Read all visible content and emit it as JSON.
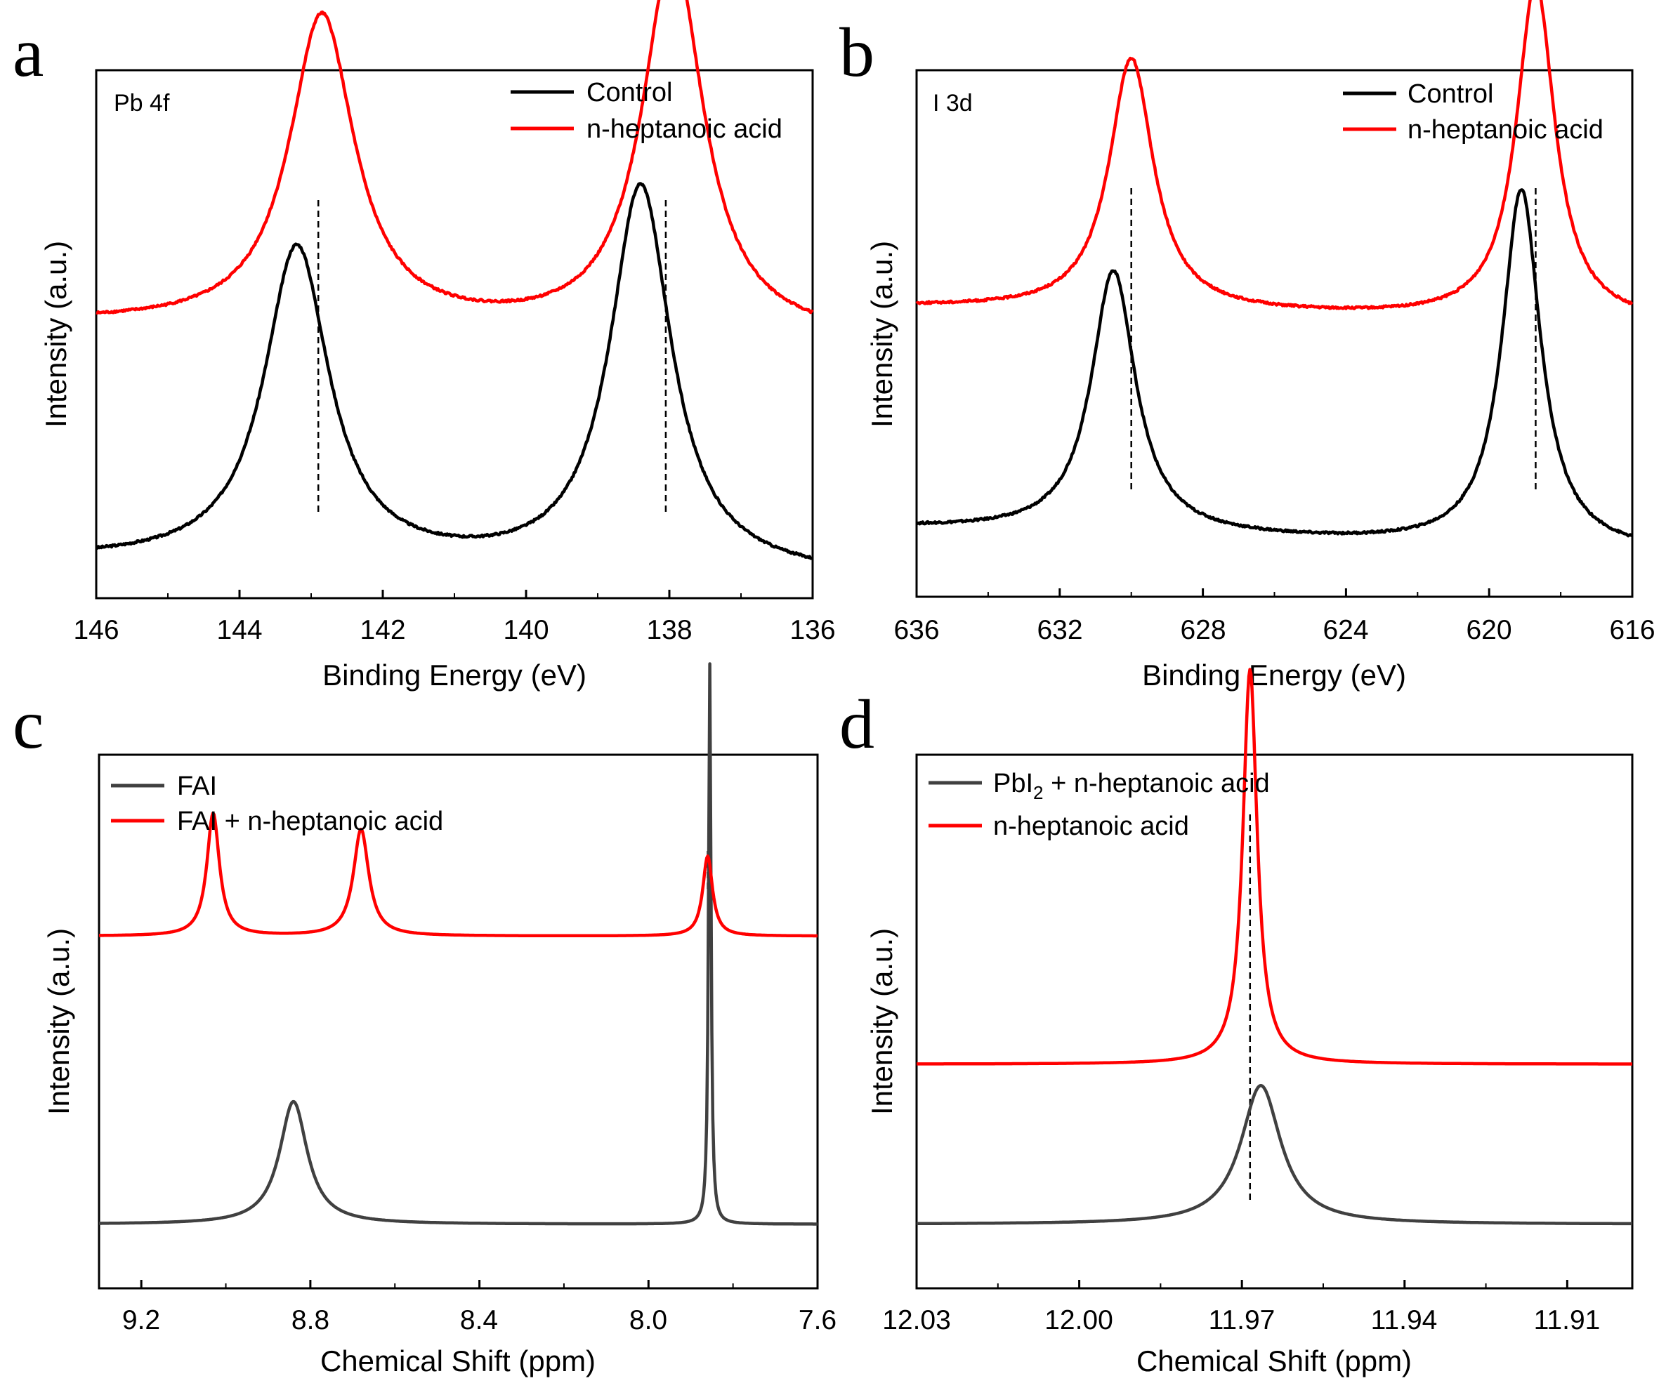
{
  "chart_data": [
    {
      "panel": "a",
      "type": "line",
      "annotation": "Pb 4f",
      "xlabel": "Binding Energy (eV)",
      "ylabel": "Intensity (a.u.)",
      "xlim": [
        146,
        136
      ],
      "x_ticks": [
        "146",
        "144",
        "142",
        "140",
        "138",
        "136"
      ],
      "legend_position": "top-right",
      "reference_lines_x": [
        142.9,
        138.05
      ],
      "series": [
        {
          "name": "Control",
          "color": "#000000",
          "baseline": 0.07,
          "baseline_slope": -0.03,
          "peaks": [
            {
              "x": 143.2,
              "height": 0.6,
              "width": 0.55
            },
            {
              "x": 138.4,
              "height": 0.73,
              "width": 0.52
            }
          ]
        },
        {
          "name": "n-heptanoic acid",
          "color": "#ff0000",
          "baseline": 0.52,
          "baseline_slope": -0.03,
          "peaks": [
            {
              "x": 142.85,
              "height": 0.59,
              "width": 0.55
            },
            {
              "x": 137.95,
              "height": 0.72,
              "width": 0.52
            }
          ]
        }
      ]
    },
    {
      "panel": "b",
      "type": "line",
      "annotation": "I 3d",
      "xlabel": "Binding Energy (eV)",
      "ylabel": "Intensity (a.u.)",
      "xlim": [
        636,
        616
      ],
      "x_ticks": [
        "636",
        "632",
        "628",
        "624",
        "620",
        "616"
      ],
      "legend_position": "top-right",
      "reference_lines_x": [
        630.0,
        618.7
      ],
      "series": [
        {
          "name": "Control",
          "color": "#000000",
          "baseline": 0.13,
          "baseline_slope": -0.045,
          "peaks": [
            {
              "x": 630.5,
              "height": 0.5,
              "width": 0.75
            },
            {
              "x": 619.1,
              "height": 0.68,
              "width": 0.65
            }
          ]
        },
        {
          "name": "n-heptanoic acid",
          "color": "#ff0000",
          "baseline": 0.55,
          "baseline_slope": -0.03,
          "peaks": [
            {
              "x": 630.0,
              "height": 0.48,
              "width": 0.75
            },
            {
              "x": 618.7,
              "height": 0.64,
              "width": 0.65
            }
          ]
        }
      ]
    },
    {
      "panel": "c",
      "type": "line",
      "xlabel": "Chemical Shift (ppm)",
      "ylabel": "Intensity (a.u.)",
      "xlim": [
        9.3,
        7.6
      ],
      "x_ticks": [
        "9.2",
        "8.8",
        "8.4",
        "8.0",
        "7.6"
      ],
      "legend_position": "top-left",
      "reference_lines_x": [
        7.86
      ],
      "series": [
        {
          "name": "FAI",
          "color": "#404040",
          "baseline": 0.12,
          "peaks": [
            {
              "x": 8.84,
              "height": 0.23,
              "width": 0.04
            },
            {
              "x": 7.855,
              "height": 1.05,
              "width": 0.0035
            }
          ]
        },
        {
          "name": "FAI + n-heptanoic acid",
          "color": "#ff0000",
          "baseline": 0.66,
          "peaks": [
            {
              "x": 9.03,
              "height": 0.23,
              "width": 0.018
            },
            {
              "x": 8.68,
              "height": 0.2,
              "width": 0.022
            },
            {
              "x": 7.86,
              "height": 0.15,
              "width": 0.014
            }
          ]
        }
      ]
    },
    {
      "panel": "d",
      "type": "line",
      "xlabel": "Chemical Shift (ppm)",
      "ylabel": "Intensity (a.u.)",
      "xlim": [
        12.03,
        11.898
      ],
      "x_ticks": [
        "12.03",
        "12.00",
        "11.97",
        "11.94",
        "11.91"
      ],
      "legend_position": "top-left",
      "reference_lines_x": [
        11.9685
      ],
      "series": [
        {
          "name": "PbI2 + n-heptanoic acid",
          "label_main": "PbI",
          "label_sub": "2",
          "label_rest": " + n-heptanoic acid",
          "color": "#404040",
          "baseline": 0.12,
          "peaks": [
            {
              "x": 11.9665,
              "height": 0.26,
              "width": 0.0045
            }
          ]
        },
        {
          "name": "n-heptanoic acid",
          "color": "#ff0000",
          "baseline": 0.42,
          "peaks": [
            {
              "x": 11.9685,
              "height": 0.74,
              "width": 0.0016
            }
          ]
        }
      ]
    }
  ],
  "panels": {
    "a": {
      "letter": "a",
      "annotation": "Pb 4f",
      "legend": [
        "Control",
        "n-heptanoic acid"
      ],
      "ticks": [
        "146",
        "144",
        "142",
        "140",
        "138",
        "136"
      ],
      "xlabel": "Binding Energy (eV)",
      "ylabel": "Intensity (a.u.)"
    },
    "b": {
      "letter": "b",
      "annotation": "I 3d",
      "legend": [
        "Control",
        "n-heptanoic acid"
      ],
      "ticks": [
        "636",
        "632",
        "628",
        "624",
        "620",
        "616"
      ],
      "xlabel": "Binding Energy (eV)",
      "ylabel": "Intensity (a.u.)"
    },
    "c": {
      "letter": "c",
      "legend": [
        "FAI",
        "FAI + n-heptanoic acid"
      ],
      "ticks": [
        "9.2",
        "8.8",
        "8.4",
        "8.0",
        "7.6"
      ],
      "xlabel": "Chemical Shift (ppm)",
      "ylabel": "Intensity (a.u.)"
    },
    "d": {
      "letter": "d",
      "legend_sub_main": "PbI",
      "legend_sub": "2",
      "legend_sub_rest": " + n-heptanoic acid",
      "legend": [
        "PbI2 + n-heptanoic acid",
        "n-heptanoic acid"
      ],
      "ticks": [
        "12.03",
        "12.00",
        "11.97",
        "11.94",
        "11.91"
      ],
      "xlabel": "Chemical Shift (ppm)",
      "ylabel": "Intensity (a.u.)"
    }
  }
}
